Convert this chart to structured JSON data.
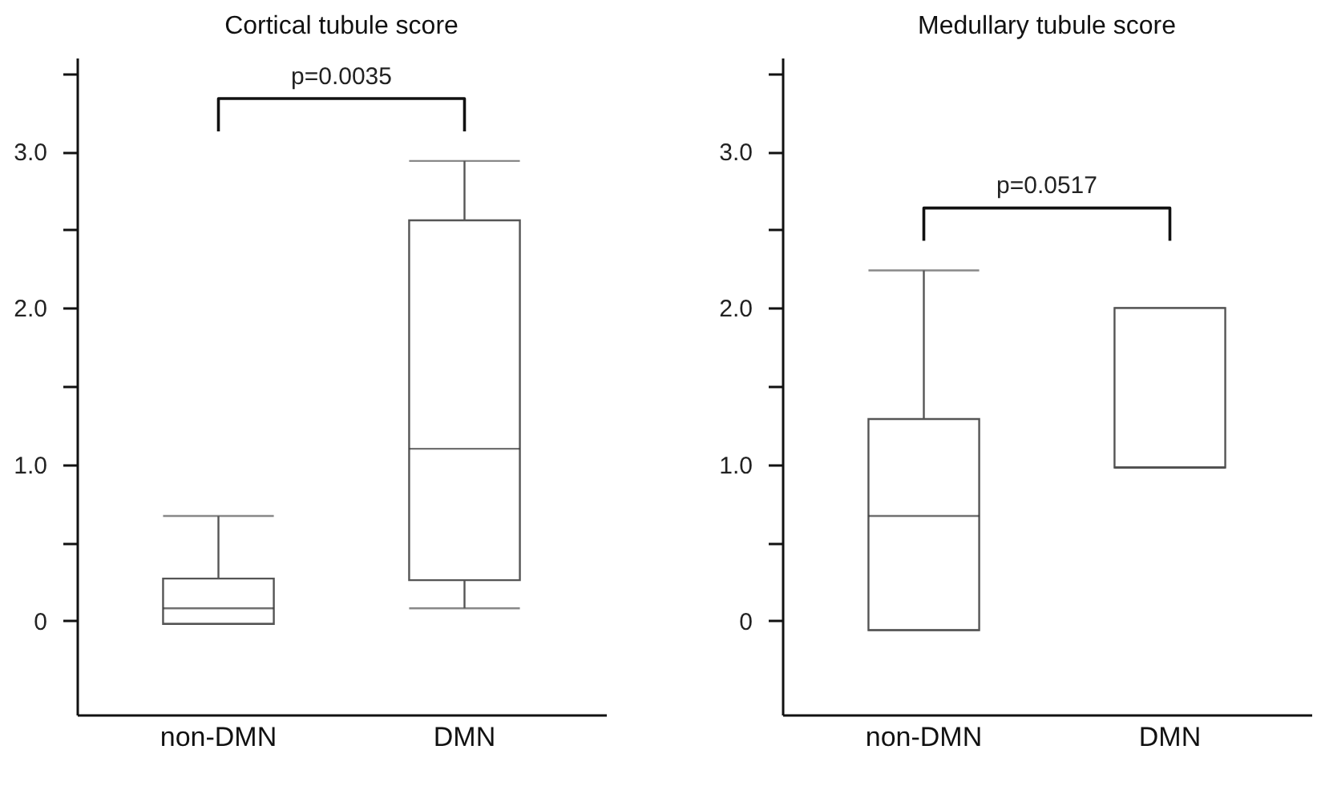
{
  "chart_data": [
    {
      "type": "box",
      "title": "Cortical tubule score",
      "categories": [
        "non-DMN",
        "DMN"
      ],
      "color": "#555555",
      "boxes": [
        {
          "low": -0.02,
          "q1": -0.02,
          "median": 0.08,
          "q3": 0.27,
          "high": 0.67
        },
        {
          "low": 0.08,
          "q1": 0.26,
          "median": 1.1,
          "q3": 2.56,
          "high": 2.94
        }
      ],
      "ylim": [
        -0.6,
        3.6
      ],
      "yticks": [
        0,
        {
          "value": 0.5,
          "label": null
        },
        {
          "value": 1,
          "label": "1.0"
        },
        {
          "value": 1.5,
          "label": null
        },
        {
          "value": 2,
          "label": "2.0"
        },
        {
          "value": 2.5,
          "label": null
        },
        {
          "value": 3,
          "label": "3.0"
        },
        {
          "value": 3.5,
          "label": null
        }
      ],
      "annotations": [
        "p=0.0035"
      ]
    },
    {
      "type": "box",
      "title": "Medullary tubule score",
      "categories": [
        "non-DMN",
        "DMN"
      ],
      "color": "#555555",
      "boxes": [
        {
          "low": -0.06,
          "q1": -0.06,
          "median": 0.67,
          "q3": 1.29,
          "high": 2.24
        },
        {
          "low": 0.98,
          "q1": 0.98,
          "median": 0.98,
          "q3": 2.0,
          "high": 2.0
        }
      ],
      "ylim": [
        -0.6,
        3.6
      ],
      "yticks": [
        0,
        {
          "value": 0.5,
          "label": null
        },
        {
          "value": 1,
          "label": "1.0"
        },
        {
          "value": 1.5,
          "label": null
        },
        {
          "value": 2,
          "label": "2.0"
        },
        {
          "value": 2.5,
          "label": null
        },
        {
          "value": 3,
          "label": "3.0"
        },
        {
          "value": 3.5,
          "label": null
        }
      ],
      "annotations": [
        "p=0.0517"
      ]
    }
  ]
}
